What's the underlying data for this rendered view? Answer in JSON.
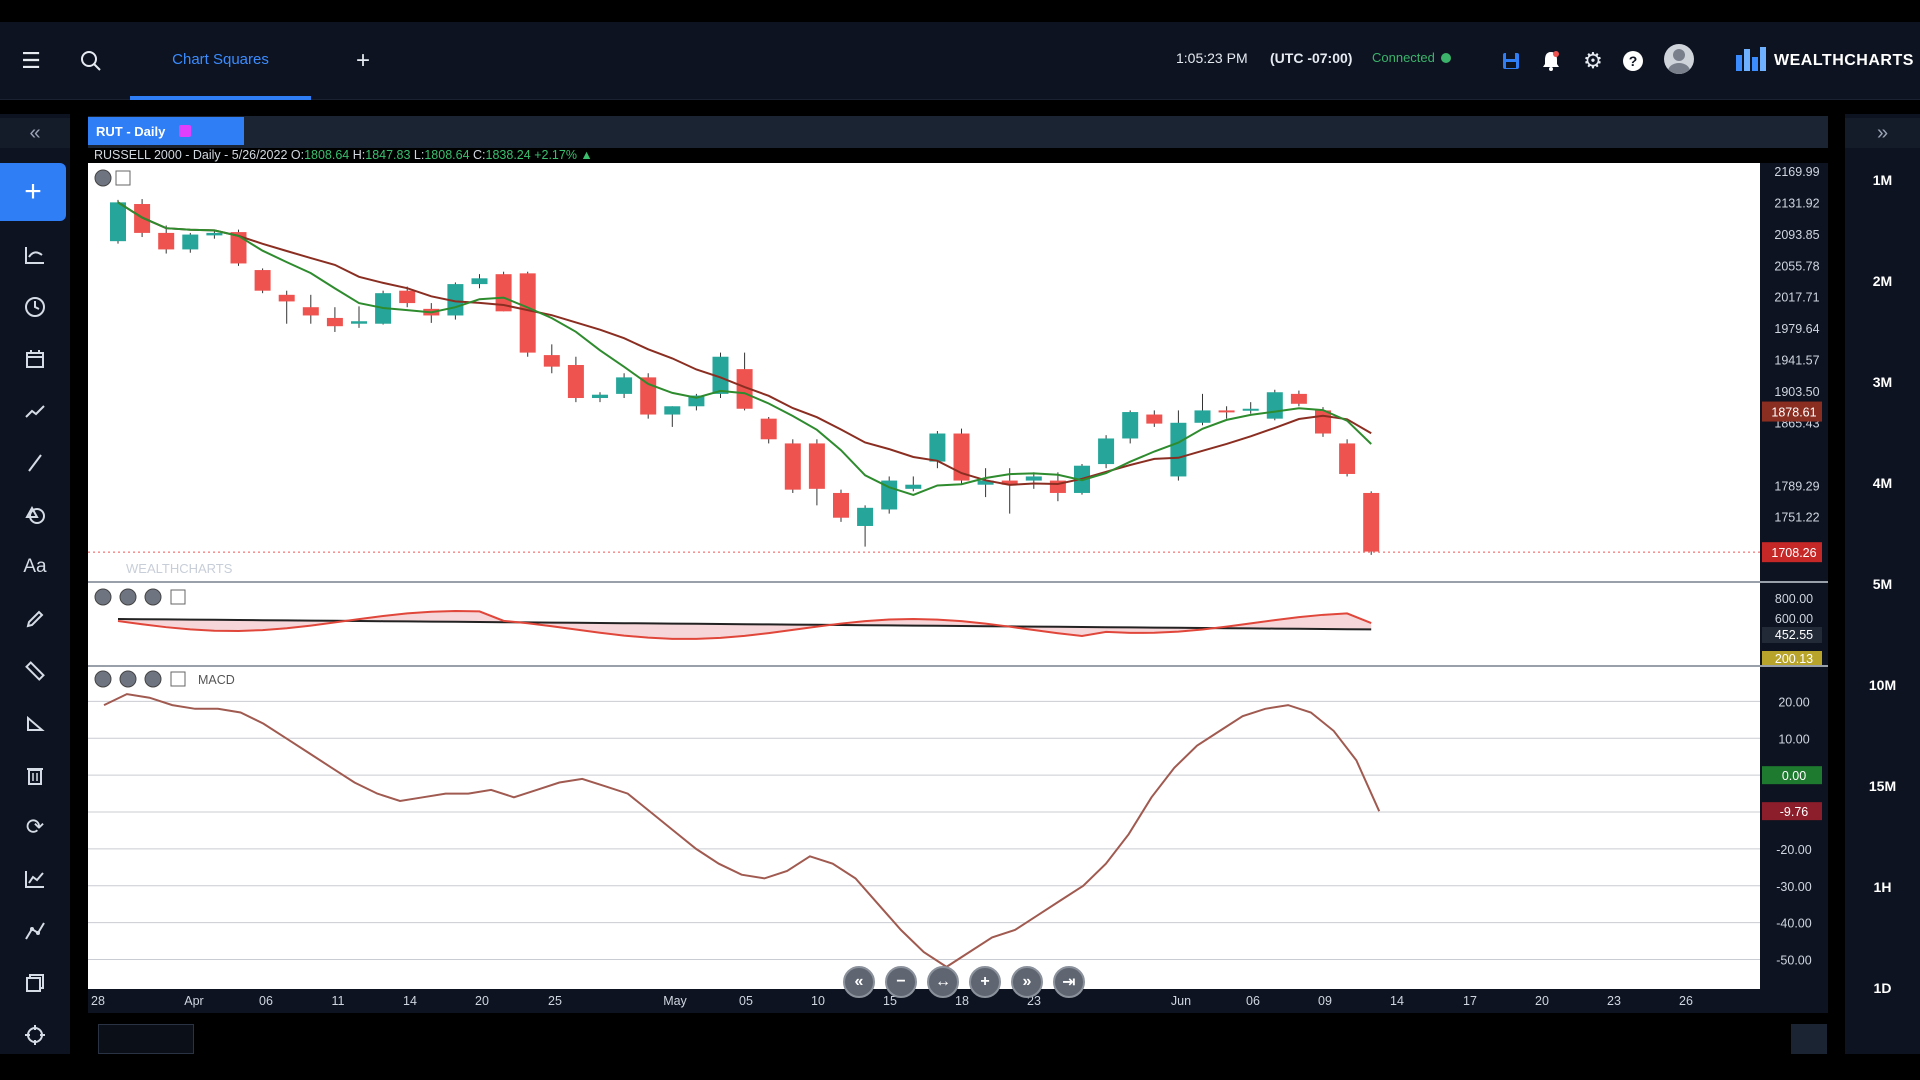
{
  "topbar": {
    "tab_label": "Chart Squares",
    "time": "1:05:23 PM",
    "timezone": "(UTC -07:00)",
    "status": "Connected",
    "status_color": "#3bb36a",
    "brand": "WEALTHCHARTS"
  },
  "chart_tab": {
    "label": "RUT - Daily"
  },
  "ohlc": {
    "prefix": "RUSSELL 2000 - Daily - 5/26/2022 O:",
    "open": "1808.64",
    "high_label": " H:",
    "high": "1847.83",
    "low_label": " L:",
    "low": "1808.64",
    "close_label": " C:",
    "close": "1838.24",
    "change": "+2.17%"
  },
  "right_panel": {
    "timeframes": [
      "1M",
      "2M",
      "3M",
      "4M",
      "5M",
      "10M",
      "15M",
      "1H",
      "1D"
    ]
  },
  "icons": {
    "left_tools": [
      "crosshair-plus-icon",
      "indicator-icon",
      "clock-icon",
      "calendar-icon",
      "trend-icon",
      "line-icon",
      "shapes-icon",
      "text-icon",
      "pencil-icon",
      "ruler-icon",
      "measure-icon",
      "trash-icon",
      "refresh-icon",
      "chart-line-icon",
      "curve-icon",
      "layers-icon",
      "target-icon"
    ]
  },
  "chart_data": {
    "type": "candlestick",
    "title": "RUSSELL 2000 - Daily",
    "colors": {
      "up": "#26a69a",
      "down": "#ef5350",
      "ma_fast": "#2e8b2e",
      "ma_slow": "#8b2e22",
      "macd": "#a05a50",
      "rsi_line": "#e0463a"
    },
    "price_axis": [
      "2169.99",
      "2131.92",
      "2093.85",
      "2055.78",
      "2017.71",
      "1979.64",
      "1941.57",
      "1903.50",
      "1865.43",
      "1789.29",
      "1751.22"
    ],
    "price_labels": {
      "ma": "1878.61",
      "last": "1708.26"
    },
    "x_ticks": [
      "28",
      "Apr",
      "06",
      "11",
      "14",
      "20",
      "25",
      "May",
      "05",
      "10",
      "15",
      "18",
      "23",
      "Jun",
      "06",
      "09",
      "14",
      "17",
      "20",
      "23",
      "26"
    ],
    "candles": [
      {
        "o": 2085,
        "h": 2135,
        "l": 2082,
        "c": 2132
      },
      {
        "o": 2130,
        "h": 2136,
        "l": 2090,
        "c": 2095
      },
      {
        "o": 2095,
        "h": 2104,
        "l": 2070,
        "c": 2075
      },
      {
        "o": 2075,
        "h": 2095,
        "l": 2071,
        "c": 2093
      },
      {
        "o": 2092,
        "h": 2098,
        "l": 2088,
        "c": 2095
      },
      {
        "o": 2096,
        "h": 2099,
        "l": 2055,
        "c": 2058
      },
      {
        "o": 2050,
        "h": 2052,
        "l": 2022,
        "c": 2025
      },
      {
        "o": 2020,
        "h": 2025,
        "l": 1985,
        "c": 2012
      },
      {
        "o": 2005,
        "h": 2020,
        "l": 1985,
        "c": 1995
      },
      {
        "o": 1992,
        "h": 2005,
        "l": 1975,
        "c": 1982
      },
      {
        "o": 1985,
        "h": 2006,
        "l": 1980,
        "c": 1988
      },
      {
        "o": 1985,
        "h": 2025,
        "l": 1984,
        "c": 2022
      },
      {
        "o": 2025,
        "h": 2030,
        "l": 2005,
        "c": 2010
      },
      {
        "o": 2003,
        "h": 2010,
        "l": 1986,
        "c": 1995
      },
      {
        "o": 1995,
        "h": 2035,
        "l": 1990,
        "c": 2033
      },
      {
        "o": 2033,
        "h": 2045,
        "l": 2028,
        "c": 2040
      },
      {
        "o": 2045,
        "h": 2048,
        "l": 2000,
        "c": 2000
      },
      {
        "o": 2046,
        "h": 2048,
        "l": 1945,
        "c": 1950
      },
      {
        "o": 1947,
        "h": 1960,
        "l": 1925,
        "c": 1933
      },
      {
        "o": 1935,
        "h": 1945,
        "l": 1890,
        "c": 1895
      },
      {
        "o": 1895,
        "h": 1902,
        "l": 1890,
        "c": 1899
      },
      {
        "o": 1900,
        "h": 1925,
        "l": 1895,
        "c": 1920
      },
      {
        "o": 1920,
        "h": 1925,
        "l": 1870,
        "c": 1875
      },
      {
        "o": 1875,
        "h": 1885,
        "l": 1860,
        "c": 1885
      },
      {
        "o": 1885,
        "h": 1900,
        "l": 1880,
        "c": 1898
      },
      {
        "o": 1900,
        "h": 1950,
        "l": 1895,
        "c": 1945
      },
      {
        "o": 1930,
        "h": 1950,
        "l": 1880,
        "c": 1882
      },
      {
        "o": 1870,
        "h": 1872,
        "l": 1840,
        "c": 1845
      },
      {
        "o": 1840,
        "h": 1845,
        "l": 1780,
        "c": 1784
      },
      {
        "o": 1840,
        "h": 1845,
        "l": 1765,
        "c": 1785
      },
      {
        "o": 1780,
        "h": 1784,
        "l": 1745,
        "c": 1750
      },
      {
        "o": 1740,
        "h": 1765,
        "l": 1715,
        "c": 1762
      },
      {
        "o": 1760,
        "h": 1800,
        "l": 1755,
        "c": 1795
      },
      {
        "o": 1785,
        "h": 1800,
        "l": 1782,
        "c": 1790
      },
      {
        "o": 1818,
        "h": 1855,
        "l": 1810,
        "c": 1852
      },
      {
        "o": 1852,
        "h": 1858,
        "l": 1790,
        "c": 1795
      },
      {
        "o": 1790,
        "h": 1810,
        "l": 1775,
        "c": 1795
      },
      {
        "o": 1795,
        "h": 1810,
        "l": 1755,
        "c": 1790
      },
      {
        "o": 1795,
        "h": 1805,
        "l": 1785,
        "c": 1800
      },
      {
        "o": 1795,
        "h": 1805,
        "l": 1770,
        "c": 1780
      },
      {
        "o": 1780,
        "h": 1815,
        "l": 1778,
        "c": 1813
      },
      {
        "o": 1815,
        "h": 1850,
        "l": 1810,
        "c": 1846
      },
      {
        "o": 1846,
        "h": 1880,
        "l": 1840,
        "c": 1878
      },
      {
        "o": 1875,
        "h": 1880,
        "l": 1860,
        "c": 1864
      },
      {
        "o": 1800,
        "h": 1880,
        "l": 1795,
        "c": 1865
      },
      {
        "o": 1865,
        "h": 1900,
        "l": 1862,
        "c": 1880
      },
      {
        "o": 1880,
        "h": 1885,
        "l": 1870,
        "c": 1878
      },
      {
        "o": 1880,
        "h": 1890,
        "l": 1876,
        "c": 1882
      },
      {
        "o": 1870,
        "h": 1905,
        "l": 1868,
        "c": 1902
      },
      {
        "o": 1900,
        "h": 1904,
        "l": 1885,
        "c": 1888
      },
      {
        "o": 1880,
        "h": 1884,
        "l": 1848,
        "c": 1852
      },
      {
        "o": 1840,
        "h": 1845,
        "l": 1800,
        "c": 1803
      },
      {
        "o": 1780,
        "h": 1782,
        "l": 1705,
        "c": 1709
      }
    ],
    "indicator2": {
      "axis": [
        "800.00",
        "600.00",
        "452.55",
        "200.13"
      ]
    },
    "macd": {
      "label": "MACD",
      "axis": [
        "20.00",
        "10.00",
        "0.00",
        "-9.76",
        "-20.00",
        "-30.00",
        "-40.00",
        "-50.00"
      ],
      "current": "-9.76"
    }
  }
}
